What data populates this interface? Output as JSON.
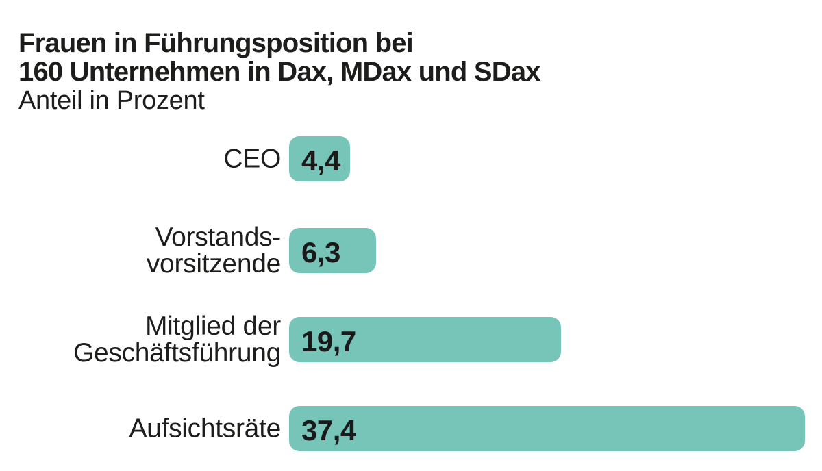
{
  "header": {
    "title_line1": "Frauen in Führungsposition bei",
    "title_line2": "160 Unternehmen in Dax, MDax und SDax",
    "subtitle": "Anteil in Prozent"
  },
  "chart_data": {
    "type": "bar",
    "orientation": "horizontal",
    "title": "Frauen in Führungsposition bei 160 Unternehmen in Dax, MDax und SDax",
    "subtitle": "Anteil in Prozent",
    "unit": "Prozent",
    "categories": [
      "CEO",
      "Vorstandsvorsitzende",
      "Mitglied der Geschäftsführung",
      "Aufsichtsräte"
    ],
    "values": [
      4.4,
      6.3,
      19.7,
      37.4
    ],
    "value_labels": [
      "4,4",
      "6,3",
      "19,7",
      "37,4"
    ],
    "xlim": [
      0,
      37.4
    ],
    "bar_color": "#77c4b9",
    "text_color": "#1d1d1b",
    "grid": false,
    "legend": false
  },
  "rows": [
    {
      "label": "CEO",
      "value": 4.4,
      "value_label": "4,4"
    },
    {
      "label": "Vorstands-\nvorsitzende",
      "value": 6.3,
      "value_label": "6,3"
    },
    {
      "label": "Mitglied der\nGeschäftsführung",
      "value": 19.7,
      "value_label": "19,7"
    },
    {
      "label": "Aufsichtsräte",
      "value": 37.4,
      "value_label": "37,4"
    }
  ]
}
